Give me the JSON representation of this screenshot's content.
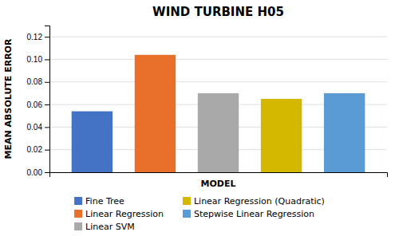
{
  "chart_data": {
    "type": "bar",
    "title": "WIND TURBINE H05",
    "xlabel": "MODEL",
    "ylabel": "MEAN ABSOLUTE ERROR",
    "categories": [
      "Fine Tree",
      "Linear Regression",
      "Linear SVM",
      "Linear Regression (Quadratic)",
      "Stepwise Linear Regression"
    ],
    "values": [
      0.054,
      0.104,
      0.07,
      0.065,
      0.07
    ],
    "colors": [
      "#4472C4",
      "#E8702A",
      "#A9A9A9",
      "#D4B800",
      "#5B9BD5"
    ],
    "ylim": [
      0,
      0.13
    ],
    "yticks": [
      {
        "value": 0,
        "label": "0.00"
      },
      0.02,
      0.04,
      0.06,
      0.08,
      {
        "value": 0.1,
        "label": "0.10"
      },
      0.12
    ],
    "grid": true,
    "legend": "bottom",
    "tick_labels": "y"
  }
}
